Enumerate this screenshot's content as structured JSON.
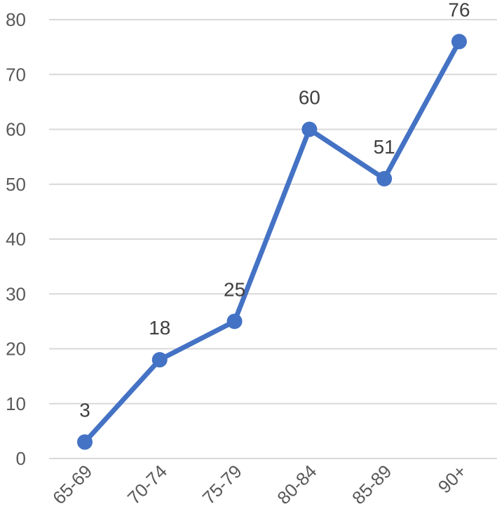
{
  "chart_data": {
    "type": "line",
    "title": "",
    "xlabel": "",
    "ylabel": "",
    "categories": [
      "65-69",
      "70-74",
      "75-79",
      "80-84",
      "85-89",
      "90+"
    ],
    "series": [
      {
        "values": [
          3,
          18,
          25,
          60,
          51,
          76
        ],
        "color": "#4472c4"
      }
    ],
    "ylim": [
      0,
      80
    ],
    "yticks": [
      0,
      10,
      20,
      30,
      40,
      50,
      60,
      70,
      80
    ],
    "grid": true,
    "legend": "none",
    "data_labels": true
  }
}
